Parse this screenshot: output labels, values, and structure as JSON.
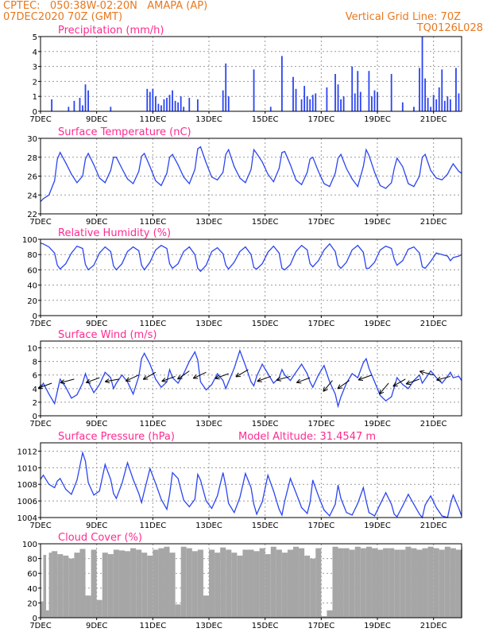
{
  "header": {
    "line1_left": "CPTEC:   050:38W-02:20N   AMAPA (AP)",
    "line2_left": "07DEC2020 70Z (GMT)",
    "line1_right": "Vertical Grid Line: 70Z",
    "line2_right": "TQ0126L028"
  },
  "colors": {
    "header": "#e8781e",
    "panel_title": "#ff2a90",
    "series": "#2b45f0",
    "cloud": "#a6a6a6"
  },
  "chart_data": [
    {
      "id": "precip",
      "type": "bar",
      "title": "Precipitation (mm/h)",
      "x_ticks": [
        "7DEC",
        "9DEC",
        "11DEC",
        "13DEC",
        "15DEC",
        "17DEC",
        "19DEC",
        "21DEC"
      ],
      "x_range_days": [
        7,
        22
      ],
      "ylim": [
        0,
        5
      ],
      "y_ticks": [
        0,
        1,
        2,
        3,
        4,
        5
      ],
      "grid": true,
      "x": [
        7.4,
        8.0,
        8.2,
        8.4,
        8.5,
        8.6,
        8.7,
        9.5,
        10.8,
        10.9,
        11.0,
        11.1,
        11.2,
        11.3,
        11.4,
        11.5,
        11.6,
        11.7,
        11.8,
        11.9,
        12.0,
        12.1,
        12.3,
        12.6,
        13.5,
        13.6,
        13.7,
        14.6,
        15.2,
        15.6,
        16.0,
        16.1,
        16.3,
        16.4,
        16.5,
        16.6,
        16.7,
        16.8,
        17.2,
        17.5,
        17.6,
        17.7,
        17.8,
        18.1,
        18.2,
        18.3,
        18.4,
        18.7,
        18.8,
        18.9,
        19.0,
        19.5,
        19.9,
        20.3,
        20.5,
        20.6,
        20.7,
        20.8,
        20.9,
        21.0,
        21.1,
        21.2,
        21.3,
        21.4,
        21.5,
        21.6,
        21.8,
        21.9
      ],
      "values": [
        0.8,
        0.3,
        0.7,
        0.9,
        0.4,
        1.8,
        1.4,
        0.3,
        1.5,
        1.3,
        1.5,
        1.0,
        0.5,
        0.4,
        0.8,
        0.9,
        1.1,
        1.4,
        0.7,
        0.6,
        1.0,
        0.3,
        0.9,
        0.8,
        1.4,
        3.2,
        1.0,
        2.8,
        0.3,
        3.7,
        2.3,
        1.5,
        0.8,
        1.7,
        1.0,
        0.8,
        1.1,
        1.2,
        1.6,
        2.5,
        1.8,
        0.8,
        1.0,
        3.0,
        1.2,
        2.7,
        1.3,
        2.7,
        1.0,
        1.4,
        1.3,
        2.5,
        0.6,
        0.3,
        2.9,
        5.0,
        2.2,
        0.9,
        0.3,
        1.1,
        0.8,
        1.6,
        2.8,
        0.7,
        1.0,
        0.8,
        2.9,
        1.2
      ]
    },
    {
      "id": "temp",
      "type": "line",
      "title": "Surface Temperature (nC)",
      "x_ticks": [
        "7DEC",
        "9DEC",
        "11DEC",
        "13DEC",
        "15DEC",
        "17DEC",
        "19DEC",
        "21DEC"
      ],
      "x_range_days": [
        7,
        22
      ],
      "ylim": [
        22,
        30
      ],
      "y_ticks": [
        22,
        24,
        26,
        28,
        30
      ],
      "grid": true,
      "x": [
        7.0,
        7.1,
        7.3,
        7.5,
        7.6,
        7.7,
        7.9,
        8.1,
        8.3,
        8.5,
        8.6,
        8.7,
        8.9,
        9.1,
        9.3,
        9.5,
        9.6,
        9.7,
        9.9,
        10.1,
        10.3,
        10.5,
        10.6,
        10.7,
        10.9,
        11.1,
        11.3,
        11.5,
        11.6,
        11.7,
        11.9,
        12.1,
        12.3,
        12.5,
        12.6,
        12.7,
        12.9,
        13.1,
        13.3,
        13.5,
        13.6,
        13.7,
        13.9,
        14.1,
        14.3,
        14.5,
        14.6,
        14.7,
        14.9,
        15.1,
        15.3,
        15.5,
        15.6,
        15.7,
        15.9,
        16.1,
        16.3,
        16.5,
        16.6,
        16.7,
        16.9,
        17.1,
        17.3,
        17.5,
        17.6,
        17.7,
        17.9,
        18.1,
        18.3,
        18.5,
        18.6,
        18.7,
        18.9,
        19.1,
        19.3,
        19.5,
        19.6,
        19.7,
        19.9,
        20.1,
        20.3,
        20.5,
        20.6,
        20.7,
        20.9,
        21.1,
        21.3,
        21.5,
        21.6,
        21.7,
        21.9,
        22.0
      ],
      "values": [
        23.3,
        23.6,
        24.0,
        25.5,
        27.8,
        28.5,
        27.4,
        26.2,
        25.3,
        26.0,
        27.8,
        28.4,
        27.2,
        25.8,
        25.3,
        26.6,
        28.0,
        28.0,
        26.8,
        25.7,
        25.2,
        26.5,
        28.1,
        28.4,
        27.0,
        25.5,
        25.0,
        26.3,
        28.0,
        28.3,
        27.2,
        25.9,
        25.2,
        26.7,
        28.9,
        29.1,
        27.4,
        25.9,
        25.6,
        26.4,
        28.3,
        28.8,
        27.0,
        25.8,
        25.3,
        26.7,
        28.8,
        28.4,
        27.5,
        26.2,
        25.4,
        26.8,
        28.5,
        28.6,
        27.2,
        25.6,
        25.1,
        26.4,
        27.8,
        28.0,
        26.5,
        25.2,
        24.9,
        26.3,
        27.9,
        28.3,
        26.8,
        25.7,
        24.9,
        27.0,
        28.8,
        28.2,
        26.4,
        25.0,
        24.7,
        25.3,
        26.8,
        27.9,
        27.0,
        25.2,
        24.9,
        26.0,
        28.0,
        28.3,
        26.6,
        25.8,
        25.6,
        26.2,
        26.8,
        27.3,
        26.5,
        26.3
      ]
    },
    {
      "id": "rh",
      "type": "line",
      "title": "Relative Humidity (%)",
      "x_ticks": [
        "7DEC",
        "9DEC",
        "11DEC",
        "13DEC",
        "15DEC",
        "17DEC",
        "19DEC",
        "21DEC"
      ],
      "x_range_days": [
        7,
        22
      ],
      "ylim": [
        0,
        100
      ],
      "y_ticks": [
        0,
        20,
        40,
        60,
        80,
        100
      ],
      "grid": true,
      "x": [
        7.0,
        7.1,
        7.3,
        7.5,
        7.6,
        7.7,
        7.9,
        8.1,
        8.3,
        8.5,
        8.6,
        8.7,
        8.9,
        9.1,
        9.3,
        9.5,
        9.6,
        9.7,
        9.9,
        10.1,
        10.3,
        10.5,
        10.6,
        10.7,
        10.9,
        11.1,
        11.3,
        11.5,
        11.6,
        11.7,
        11.9,
        12.1,
        12.3,
        12.5,
        12.6,
        12.7,
        12.9,
        13.1,
        13.3,
        13.5,
        13.6,
        13.7,
        13.9,
        14.1,
        14.3,
        14.5,
        14.6,
        14.7,
        14.9,
        15.1,
        15.3,
        15.5,
        15.6,
        15.7,
        15.9,
        16.1,
        16.3,
        16.5,
        16.6,
        16.7,
        16.9,
        17.1,
        17.3,
        17.5,
        17.6,
        17.7,
        17.9,
        18.1,
        18.3,
        18.5,
        18.6,
        18.7,
        18.9,
        19.1,
        19.3,
        19.5,
        19.6,
        19.7,
        19.9,
        20.1,
        20.3,
        20.5,
        20.6,
        20.7,
        20.9,
        21.1,
        21.3,
        21.5,
        21.6,
        21.7,
        21.9,
        22.0
      ],
      "values": [
        95,
        94,
        90,
        82,
        66,
        61,
        68,
        82,
        91,
        88,
        67,
        60,
        66,
        82,
        90,
        84,
        65,
        60,
        68,
        84,
        90,
        85,
        66,
        60,
        70,
        86,
        92,
        88,
        68,
        62,
        68,
        84,
        90,
        80,
        62,
        58,
        66,
        84,
        89,
        81,
        66,
        61,
        70,
        84,
        90,
        80,
        63,
        61,
        68,
        83,
        91,
        82,
        62,
        60,
        67,
        84,
        92,
        86,
        68,
        64,
        72,
        86,
        94,
        84,
        66,
        62,
        70,
        86,
        92,
        83,
        62,
        62,
        70,
        86,
        91,
        88,
        74,
        66,
        72,
        87,
        90,
        82,
        64,
        62,
        71,
        82,
        80,
        78,
        72,
        76,
        78,
        80
      ]
    },
    {
      "id": "wind",
      "type": "line",
      "title": "Surface Wind (m/s)",
      "x_ticks": [
        "7DEC",
        "9DEC",
        "11DEC",
        "13DEC",
        "15DEC",
        "17DEC",
        "19DEC",
        "21DEC"
      ],
      "x_range_days": [
        7,
        22
      ],
      "ylim": [
        0,
        11
      ],
      "y_ticks": [
        0,
        2,
        4,
        6,
        8,
        10
      ],
      "grid": true,
      "x": [
        7.0,
        7.1,
        7.3,
        7.5,
        7.6,
        7.7,
        7.9,
        8.1,
        8.3,
        8.5,
        8.6,
        8.7,
        8.9,
        9.1,
        9.3,
        9.5,
        9.6,
        9.7,
        9.9,
        10.1,
        10.3,
        10.5,
        10.6,
        10.7,
        10.9,
        11.1,
        11.3,
        11.5,
        11.6,
        11.7,
        11.9,
        12.1,
        12.3,
        12.5,
        12.6,
        12.7,
        12.9,
        13.1,
        13.3,
        13.5,
        13.6,
        13.7,
        13.9,
        14.1,
        14.3,
        14.5,
        14.6,
        14.7,
        14.9,
        15.1,
        15.3,
        15.5,
        15.6,
        15.7,
        15.9,
        16.1,
        16.3,
        16.5,
        16.6,
        16.7,
        16.9,
        17.1,
        17.3,
        17.5,
        17.6,
        17.7,
        17.9,
        18.1,
        18.3,
        18.5,
        18.6,
        18.7,
        18.9,
        19.1,
        19.3,
        19.5,
        19.6,
        19.7,
        19.9,
        20.1,
        20.3,
        20.5,
        20.6,
        20.7,
        20.9,
        21.1,
        21.3,
        21.5,
        21.6,
        21.7,
        21.9,
        22.0
      ],
      "values": [
        4.0,
        4.8,
        3.2,
        1.8,
        3.6,
        5.4,
        4.2,
        2.6,
        3.1,
        4.8,
        6.2,
        5.0,
        3.4,
        4.6,
        6.4,
        5.6,
        4.0,
        4.8,
        6.0,
        5.0,
        3.2,
        5.8,
        8.4,
        9.2,
        7.6,
        5.4,
        4.2,
        5.0,
        6.8,
        5.6,
        4.8,
        6.2,
        8.0,
        9.4,
        8.2,
        5.0,
        3.8,
        4.6,
        6.2,
        5.2,
        4.0,
        5.0,
        7.0,
        9.6,
        7.4,
        5.0,
        4.4,
        5.8,
        7.6,
        6.2,
        4.8,
        5.6,
        6.8,
        6.0,
        5.2,
        6.4,
        7.6,
        6.2,
        5.0,
        4.2,
        6.0,
        7.4,
        5.0,
        3.2,
        1.4,
        2.8,
        4.8,
        6.2,
        5.6,
        7.8,
        8.4,
        7.0,
        5.0,
        3.0,
        2.2,
        2.8,
        4.2,
        5.6,
        4.6,
        4.0,
        5.2,
        6.0,
        4.8,
        5.4,
        6.6,
        5.6,
        4.8,
        5.8,
        6.4,
        5.6,
        5.8,
        5.2
      ],
      "wind_arrows": [
        {
          "day": 7.4,
          "speed": 4.8,
          "dir_deg": 200
        },
        {
          "day": 8.2,
          "speed": 5.4,
          "dir_deg": 195
        },
        {
          "day": 9.1,
          "speed": 5.6,
          "dir_deg": 200
        },
        {
          "day": 9.8,
          "speed": 5.4,
          "dir_deg": 190
        },
        {
          "day": 10.5,
          "speed": 6.0,
          "dir_deg": 205
        },
        {
          "day": 11.1,
          "speed": 6.4,
          "dir_deg": 210
        },
        {
          "day": 11.8,
          "speed": 5.8,
          "dir_deg": 200
        },
        {
          "day": 12.3,
          "speed": 6.6,
          "dir_deg": 215
        },
        {
          "day": 12.9,
          "speed": 6.4,
          "dir_deg": 205
        },
        {
          "day": 13.7,
          "speed": 6.2,
          "dir_deg": 200
        },
        {
          "day": 14.4,
          "speed": 6.8,
          "dir_deg": 210
        },
        {
          "day": 15.2,
          "speed": 5.8,
          "dir_deg": 200
        },
        {
          "day": 15.9,
          "speed": 5.8,
          "dir_deg": 195
        },
        {
          "day": 16.6,
          "speed": 5.6,
          "dir_deg": 200
        },
        {
          "day": 17.4,
          "speed": 5.2,
          "dir_deg": 230
        },
        {
          "day": 18.0,
          "speed": 5.2,
          "dir_deg": 215
        },
        {
          "day": 18.8,
          "speed": 6.0,
          "dir_deg": 200
        },
        {
          "day": 19.4,
          "speed": 4.8,
          "dir_deg": 230
        },
        {
          "day": 20.0,
          "speed": 5.4,
          "dir_deg": 210
        },
        {
          "day": 20.5,
          "speed": 5.4,
          "dir_deg": 200
        },
        {
          "day": 21.0,
          "speed": 6.0,
          "dir_deg": 165
        },
        {
          "day": 21.6,
          "speed": 5.8,
          "dir_deg": 195
        }
      ]
    },
    {
      "id": "pressure",
      "type": "line",
      "title": "Surface Pressure (hPa)",
      "annotation": "Model Altitude: 31.4547 m",
      "x_ticks": [
        "7DEC",
        "9DEC",
        "11DEC",
        "13DEC",
        "15DEC",
        "17DEC",
        "19DEC",
        "21DEC"
      ],
      "x_range_days": [
        7,
        22
      ],
      "ylim": [
        1004,
        1013
      ],
      "y_ticks": [
        1004,
        1006,
        1008,
        1010,
        1012
      ],
      "grid": true,
      "x": [
        7.0,
        7.1,
        7.3,
        7.5,
        7.6,
        7.7,
        7.9,
        8.1,
        8.3,
        8.5,
        8.6,
        8.7,
        8.9,
        9.1,
        9.3,
        9.5,
        9.6,
        9.7,
        9.9,
        10.1,
        10.3,
        10.5,
        10.6,
        10.7,
        10.9,
        11.1,
        11.3,
        11.5,
        11.6,
        11.7,
        11.9,
        12.1,
        12.3,
        12.5,
        12.6,
        12.7,
        12.9,
        13.1,
        13.3,
        13.5,
        13.6,
        13.7,
        13.9,
        14.1,
        14.3,
        14.5,
        14.6,
        14.7,
        14.9,
        15.1,
        15.3,
        15.5,
        15.6,
        15.7,
        15.9,
        16.1,
        16.3,
        16.5,
        16.6,
        16.7,
        16.9,
        17.1,
        17.3,
        17.5,
        17.6,
        17.7,
        17.9,
        18.1,
        18.3,
        18.5,
        18.6,
        18.7,
        18.9,
        19.1,
        19.3,
        19.5,
        19.6,
        19.7,
        19.9,
        20.1,
        20.3,
        20.5,
        20.6,
        20.7,
        20.9,
        21.1,
        21.3,
        21.5,
        21.6,
        21.7,
        21.9,
        22.0
      ],
      "values": [
        1008.6,
        1009.1,
        1008.0,
        1007.6,
        1008.4,
        1008.7,
        1007.4,
        1006.8,
        1008.5,
        1011.8,
        1010.8,
        1008.2,
        1006.7,
        1007.2,
        1010.4,
        1008.6,
        1006.9,
        1006.3,
        1008.1,
        1010.6,
        1008.6,
        1006.9,
        1005.8,
        1007.2,
        1009.9,
        1008.1,
        1006.2,
        1005.0,
        1006.8,
        1009.4,
        1008.7,
        1006.1,
        1005.3,
        1006.2,
        1009.2,
        1008.5,
        1006.0,
        1005.1,
        1006.6,
        1009.4,
        1007.8,
        1005.7,
        1004.6,
        1006.4,
        1009.3,
        1007.6,
        1005.6,
        1004.4,
        1005.9,
        1009.1,
        1007.2,
        1005.0,
        1004.3,
        1006.0,
        1008.7,
        1007.0,
        1005.2,
        1004.5,
        1005.8,
        1008.5,
        1006.6,
        1004.9,
        1004.2,
        1005.6,
        1007.9,
        1006.3,
        1004.6,
        1004.3,
        1005.7,
        1007.6,
        1006.0,
        1004.6,
        1004.2,
        1005.6,
        1007.0,
        1005.6,
        1004.4,
        1004.1,
        1005.4,
        1006.8,
        1005.6,
        1004.4,
        1004.0,
        1005.5,
        1006.6,
        1005.2,
        1004.2,
        1004.0,
        1005.6,
        1006.7,
        1005.1,
        1004.2
      ]
    },
    {
      "id": "cloud",
      "type": "area",
      "title": "Cloud Cover (%)",
      "x_ticks": [
        "7DEC",
        "9DEC",
        "11DEC",
        "13DEC",
        "15DEC",
        "17DEC",
        "19DEC",
        "21DEC"
      ],
      "x_range_days": [
        7,
        22
      ],
      "ylim": [
        0,
        100
      ],
      "y_ticks": [
        0,
        20,
        40,
        60,
        80,
        100
      ],
      "grid": true,
      "x": [
        7.0,
        7.1,
        7.2,
        7.3,
        7.4,
        7.6,
        7.8,
        8.0,
        8.2,
        8.4,
        8.6,
        8.8,
        9.0,
        9.2,
        9.4,
        9.6,
        9.8,
        10.0,
        10.2,
        10.4,
        10.6,
        10.8,
        11.0,
        11.2,
        11.4,
        11.6,
        11.8,
        12.0,
        12.2,
        12.4,
        12.6,
        12.8,
        13.0,
        13.2,
        13.4,
        13.6,
        13.8,
        14.0,
        14.2,
        14.4,
        14.6,
        14.8,
        15.0,
        15.2,
        15.4,
        15.6,
        15.8,
        16.0,
        16.2,
        16.4,
        16.6,
        16.8,
        17.0,
        17.2,
        17.4,
        17.6,
        17.8,
        18.0,
        18.2,
        18.4,
        18.6,
        18.8,
        19.0,
        19.2,
        19.4,
        19.6,
        19.8,
        20.0,
        20.2,
        20.4,
        20.6,
        20.8,
        21.0,
        21.2,
        21.4,
        21.6,
        21.8,
        22.0
      ],
      "values": [
        22,
        85,
        10,
        88,
        90,
        86,
        84,
        80,
        88,
        93,
        30,
        92,
        24,
        88,
        86,
        92,
        91,
        90,
        94,
        92,
        88,
        84,
        92,
        94,
        96,
        88,
        18,
        96,
        94,
        90,
        92,
        30,
        92,
        88,
        95,
        92,
        88,
        84,
        92,
        92,
        90,
        94,
        86,
        96,
        92,
        88,
        92,
        96,
        94,
        84,
        80,
        94,
        2,
        10,
        96,
        94,
        94,
        92,
        96,
        94,
        96,
        94,
        92,
        94,
        94,
        92,
        92,
        96,
        94,
        92,
        94,
        96,
        94,
        92,
        96,
        94,
        92,
        96
      ]
    }
  ]
}
